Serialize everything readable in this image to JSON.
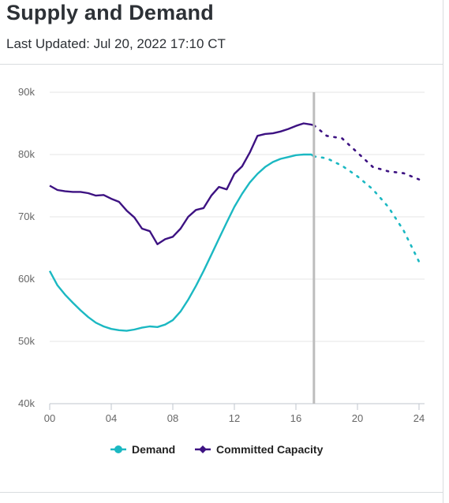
{
  "header": {
    "title": "Supply and Demand",
    "subtitle": "Last Updated: Jul 20, 2022 17:10 CT"
  },
  "chart_data": {
    "type": "line",
    "title": "Supply and Demand",
    "xlabel": "",
    "ylabel": "",
    "x_ticks": [
      "00",
      "04",
      "08",
      "12",
      "16",
      "20",
      "24"
    ],
    "x_tick_values": [
      0,
      4,
      8,
      12,
      16,
      20,
      24
    ],
    "y_ticks": [
      "40k",
      "50k",
      "60k",
      "70k",
      "80k",
      "90k"
    ],
    "y_tick_values": [
      40000,
      50000,
      60000,
      70000,
      80000,
      90000
    ],
    "xlim": [
      0,
      24
    ],
    "ylim": [
      40000,
      90000
    ],
    "grid": "horizontal",
    "legend_position": "bottom",
    "current_time_marker": 17.17,
    "series": [
      {
        "name": "Demand",
        "color": "#1bb8c2",
        "actual": [
          [
            0,
            61300
          ],
          [
            0.5,
            59000
          ],
          [
            1,
            57500
          ],
          [
            1.5,
            56200
          ],
          [
            2,
            55000
          ],
          [
            2.5,
            53900
          ],
          [
            3,
            53000
          ],
          [
            3.5,
            52400
          ],
          [
            4,
            52000
          ],
          [
            4.5,
            51800
          ],
          [
            5,
            51700
          ],
          [
            5.5,
            51900
          ],
          [
            6,
            52200
          ],
          [
            6.5,
            52400
          ],
          [
            7,
            52300
          ],
          [
            7.5,
            52700
          ],
          [
            8,
            53400
          ],
          [
            8.5,
            54800
          ],
          [
            9,
            56700
          ],
          [
            9.5,
            58900
          ],
          [
            10,
            61300
          ],
          [
            10.5,
            63900
          ],
          [
            11,
            66500
          ],
          [
            11.5,
            69100
          ],
          [
            12,
            71600
          ],
          [
            12.5,
            73700
          ],
          [
            13,
            75500
          ],
          [
            13.5,
            76900
          ],
          [
            14,
            78000
          ],
          [
            14.5,
            78800
          ],
          [
            15,
            79300
          ],
          [
            15.5,
            79600
          ],
          [
            16,
            79900
          ],
          [
            16.5,
            80000
          ],
          [
            17,
            80000
          ],
          [
            17.17,
            79700
          ]
        ],
        "forecast": [
          [
            17.17,
            79700
          ],
          [
            18,
            79400
          ],
          [
            19,
            78200
          ],
          [
            20,
            76500
          ],
          [
            21,
            74400
          ],
          [
            22,
            71600
          ],
          [
            23,
            67800
          ],
          [
            24,
            62800
          ]
        ]
      },
      {
        "name": "Committed Capacity",
        "color": "#3d1282",
        "actual": [
          [
            0,
            75000
          ],
          [
            0.5,
            74300
          ],
          [
            1,
            74100
          ],
          [
            1.5,
            74000
          ],
          [
            2,
            74000
          ],
          [
            2.5,
            73800
          ],
          [
            3,
            73400
          ],
          [
            3.5,
            73500
          ],
          [
            4,
            72900
          ],
          [
            4.5,
            72400
          ],
          [
            5,
            71000
          ],
          [
            5.5,
            69900
          ],
          [
            6,
            68100
          ],
          [
            6.5,
            67700
          ],
          [
            7,
            65600
          ],
          [
            7.5,
            66400
          ],
          [
            8,
            66800
          ],
          [
            8.5,
            68100
          ],
          [
            9,
            70000
          ],
          [
            9.5,
            71100
          ],
          [
            10,
            71400
          ],
          [
            10.5,
            73400
          ],
          [
            11,
            74800
          ],
          [
            11.5,
            74400
          ],
          [
            12,
            76900
          ],
          [
            12.5,
            78100
          ],
          [
            13,
            80300
          ],
          [
            13.5,
            83000
          ],
          [
            14,
            83300
          ],
          [
            14.5,
            83400
          ],
          [
            15,
            83700
          ],
          [
            15.5,
            84100
          ],
          [
            16,
            84600
          ],
          [
            16.5,
            85000
          ],
          [
            17,
            84800
          ],
          [
            17.17,
            84700
          ]
        ],
        "forecast": [
          [
            17.17,
            84700
          ],
          [
            18,
            83000
          ],
          [
            19,
            82600
          ],
          [
            20,
            80300
          ],
          [
            21,
            78000
          ],
          [
            22,
            77300
          ],
          [
            23,
            77000
          ],
          [
            24,
            76000
          ]
        ]
      }
    ]
  },
  "legend": [
    {
      "label": "Demand",
      "color": "#1bb8c2",
      "marker": "circle"
    },
    {
      "label": "Committed Capacity",
      "color": "#3d1282",
      "marker": "diamond"
    }
  ]
}
